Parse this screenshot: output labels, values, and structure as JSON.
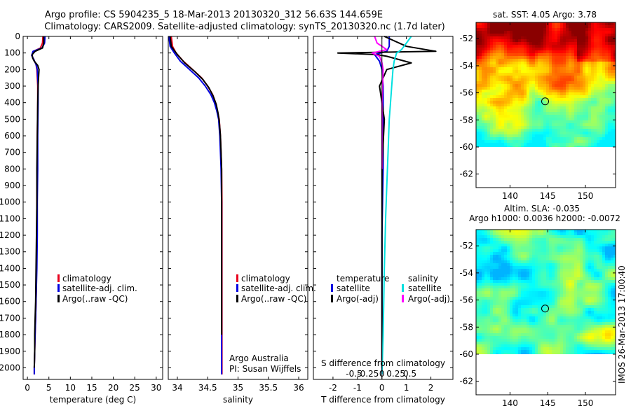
{
  "header": {
    "line1": "Argo profile: CS 5904235_5 18-Mar-2013 20130320_312 56.63S 144.659E",
    "line2": "Climatology: CARS2009. Satellite-adjusted climatology: synTS_20130320.nc (1.7d later)"
  },
  "side_label": "IMOS 26-Mar-2013 17:00:40",
  "colors": {
    "climatology": "#e8001c",
    "satellite": "#0000e0",
    "argo": "#000000",
    "sal_sat": "#00e0e0",
    "sal_argo": "#ff00ff"
  },
  "chart_data": [
    {
      "type": "line",
      "xlabel": "temperature (deg C)",
      "xticks": [
        0,
        5,
        10,
        15,
        20,
        25,
        30
      ],
      "xlim": [
        -1,
        31.5
      ],
      "ylim": [
        0,
        2070
      ],
      "yticks": [
        0,
        100,
        200,
        300,
        400,
        500,
        600,
        700,
        800,
        900,
        1000,
        1100,
        1200,
        1300,
        1400,
        1500,
        1600,
        1700,
        1800,
        1900,
        2000
      ],
      "legend": [
        "climatology",
        "satellite-adj. clim.",
        "Argo(..raw -QC)"
      ],
      "series": [
        {
          "role": "climatology",
          "color": "#e8001c",
          "x": [
            3.6,
            3.5,
            3.0,
            1.4,
            1.0,
            1.5,
            2.0,
            2.2,
            2.3,
            2.4,
            2.4,
            2.3,
            2.3,
            2.2,
            2.2,
            2.1,
            2.1,
            2.0,
            1.9,
            1.8,
            1.7,
            1.6,
            1.6
          ],
          "y": [
            0,
            40,
            70,
            90,
            115,
            140,
            170,
            200,
            250,
            300,
            400,
            600,
            800,
            1000,
            1200,
            1400,
            1500,
            1600,
            1700,
            1800,
            1900,
            2000,
            2040
          ]
        },
        {
          "role": "satellite",
          "color": "#0000e0",
          "x": [
            4.1,
            4.0,
            3.4,
            1.3,
            1.0,
            1.5,
            2.0,
            2.3,
            2.4,
            2.5,
            2.5,
            2.4,
            2.4,
            2.3,
            2.3,
            2.2,
            2.1,
            2.0,
            1.9,
            1.8,
            1.7,
            1.6,
            1.6
          ],
          "y": [
            0,
            40,
            70,
            90,
            115,
            140,
            170,
            200,
            250,
            300,
            400,
            600,
            800,
            1000,
            1200,
            1400,
            1500,
            1600,
            1700,
            1800,
            1900,
            2000,
            2040
          ]
        },
        {
          "role": "argo",
          "color": "#000000",
          "x": [
            3.8,
            3.8,
            3.5,
            1.8,
            1.1,
            1.2,
            1.6,
            2.4,
            2.7,
            2.6,
            2.5,
            2.4,
            2.3,
            2.2,
            2.2,
            2.1,
            2.0,
            1.9,
            1.8,
            1.7,
            1.7,
            1.6
          ],
          "y": [
            0,
            40,
            70,
            90,
            110,
            130,
            150,
            175,
            200,
            250,
            300,
            400,
            600,
            800,
            1000,
            1200,
            1400,
            1600,
            1700,
            1800,
            1900,
            2000
          ]
        }
      ]
    },
    {
      "type": "line",
      "xlabel": "salinity",
      "xticks": [
        34,
        34.5,
        35,
        35.5,
        36
      ],
      "xticklabels": [
        "34",
        "34.5",
        "35",
        "35.5",
        "36"
      ],
      "xlim": [
        33.85,
        36.15
      ],
      "ylim": [
        0,
        2070
      ],
      "legend": [
        "climatology",
        "satellite-adj. clim.",
        "Argo(..raw -QC)"
      ],
      "annotations": [
        "Argo Australia",
        "PI: Susan Wijffels"
      ],
      "series": [
        {
          "role": "climatology",
          "color": "#e8001c",
          "x": [
            33.9,
            33.92,
            33.98,
            34.1,
            34.25,
            34.4,
            34.5,
            34.58,
            34.63,
            34.66,
            34.69,
            34.71,
            34.72,
            34.73,
            34.735,
            34.735,
            34.735,
            34.735
          ],
          "y": [
            0,
            60,
            100,
            150,
            200,
            250,
            300,
            350,
            400,
            450,
            500,
            600,
            700,
            800,
            1000,
            1400,
            1800,
            2040
          ]
        },
        {
          "role": "satellite",
          "color": "#0000e0",
          "x": [
            33.86,
            33.88,
            33.95,
            34.05,
            34.2,
            34.35,
            34.46,
            34.55,
            34.61,
            34.65,
            34.68,
            34.7,
            34.71,
            34.72,
            34.73,
            34.73,
            34.73,
            34.73
          ],
          "y": [
            0,
            60,
            100,
            150,
            200,
            250,
            300,
            350,
            400,
            450,
            500,
            600,
            700,
            800,
            1000,
            1400,
            1800,
            2040
          ]
        },
        {
          "role": "argo",
          "color": "#000000",
          "x": [
            33.88,
            33.9,
            34.0,
            34.12,
            34.28,
            34.42,
            34.52,
            34.59,
            34.64,
            34.67,
            34.69,
            34.71,
            34.72,
            34.73,
            34.73,
            34.73,
            34.73
          ],
          "y": [
            0,
            60,
            110,
            160,
            210,
            260,
            310,
            360,
            410,
            460,
            510,
            600,
            700,
            800,
            1000,
            1400,
            1800
          ]
        }
      ]
    },
    {
      "type": "line",
      "xlabel": "T difference from climatology",
      "xticks": [
        -2,
        -1,
        0,
        1,
        2
      ],
      "xlim": [
        -2.8,
        2.9
      ],
      "secondary_xlabel": "S difference from climatology",
      "secondary_xticks": [
        -0.5,
        -0.25,
        0,
        0.25,
        0.5
      ],
      "secondary_xticklabels": [
        "-0.5",
        "-0.25",
        "0",
        "0.25",
        "0.5"
      ],
      "ylim": [
        0,
        2070
      ],
      "legend_titles": [
        "temperature",
        "salinity"
      ],
      "legend": [
        "satellite",
        "Argo(-adj)",
        "satellite",
        "Argo(-adj)"
      ],
      "series": [
        {
          "role": "T satellite",
          "color": "#0000e0",
          "x": [
            0.3,
            0.3,
            0.2,
            -0.3,
            -0.1,
            0,
            0.05,
            0.05,
            0.05,
            0.0,
            0.0,
            0.0,
            0.0,
            0.0
          ],
          "y": [
            0,
            60,
            90,
            110,
            150,
            200,
            300,
            500,
            800,
            1200,
            1500,
            1800,
            2000,
            2040
          ]
        },
        {
          "role": "T argo",
          "color": "#000000",
          "x": [
            0.1,
            1.0,
            2.2,
            -1.8,
            -0.2,
            0.2,
            1.2,
            0.2,
            -0.1,
            0.1,
            0.0,
            0.0,
            0.0,
            0.0
          ],
          "y": [
            0,
            60,
            90,
            100,
            110,
            120,
            160,
            200,
            300,
            500,
            800,
            1200,
            1600,
            2000
          ]
        },
        {
          "role": "S satellite",
          "color": "#00e0e0",
          "x": [
            1.2,
            1.0,
            0.8,
            0.6,
            0.5,
            0.45,
            0.4,
            0.35,
            0.3,
            0.25,
            0.2,
            0.15,
            0.1,
            0.05,
            0.0
          ],
          "y": [
            0,
            40,
            80,
            100,
            150,
            200,
            300,
            400,
            500,
            700,
            900,
            1100,
            1400,
            1800,
            2040
          ]
        },
        {
          "role": "S argo",
          "color": "#ff00ff",
          "x": [
            -0.3,
            -0.2,
            0.2,
            -0.4,
            -0.1,
            0.0,
            0.05,
            0.0,
            0.0
          ],
          "y": [
            0,
            40,
            80,
            100,
            120,
            160,
            200,
            400,
            800
          ]
        }
      ]
    },
    {
      "type": "heatmap",
      "title": "sat. SST: 4.05 Argo: 3.78",
      "xticks": [
        140,
        145,
        150
      ],
      "yticks": [
        -52,
        -54,
        -56,
        -58,
        -60,
        -62
      ],
      "xlim": [
        135.5,
        154
      ],
      "ylim": [
        -63,
        -50.8
      ],
      "data_ylim": [
        -60,
        -50.8
      ],
      "marker": {
        "lon": 144.659,
        "lat": -56.63
      }
    },
    {
      "type": "heatmap",
      "title": "Altim. SLA: -0.035",
      "subtitle": "Argo h1000: 0.0036 h2000: -0.0072",
      "xticks": [
        140,
        145,
        150
      ],
      "yticks": [
        -52,
        -54,
        -56,
        -58,
        -60,
        -62
      ],
      "xlim": [
        135.5,
        154
      ],
      "ylim": [
        -63,
        -50.8
      ],
      "data_ylim": [
        -60,
        -50.8
      ],
      "marker": {
        "lon": 144.659,
        "lat": -56.63
      }
    }
  ]
}
